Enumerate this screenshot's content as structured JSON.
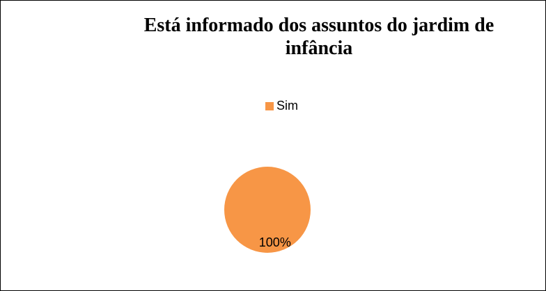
{
  "chart_data": {
    "type": "pie",
    "title": "Está informado dos assuntos do jardim de infância",
    "categories": [
      "Sim"
    ],
    "values": [
      100
    ],
    "value_labels": [
      "100%"
    ],
    "colors": [
      "#f79646"
    ],
    "legend": "top"
  }
}
